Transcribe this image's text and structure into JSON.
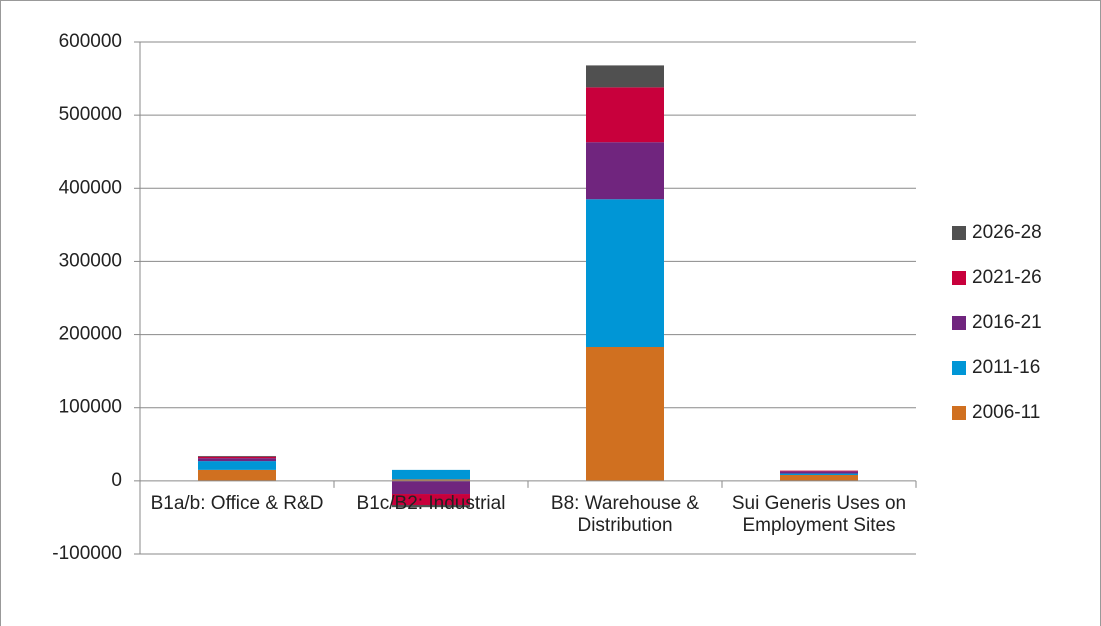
{
  "chart_data": {
    "type": "stacked-bar",
    "categories": [
      "B1a/b: Office & R&D",
      "B1c/B2: Industrial",
      "B8: Warehouse & Distribution",
      "Sui Generis Uses on Employment Sites"
    ],
    "series": [
      {
        "name": "2006-11",
        "color": "#d07020",
        "values": [
          15000,
          2000,
          183000,
          8000
        ]
      },
      {
        "name": "2011-16",
        "color": "#0096d6",
        "values": [
          12000,
          13000,
          202000,
          2000
        ]
      },
      {
        "name": "2016-21",
        "color": "#70257e",
        "values": [
          4000,
          -18000,
          78000,
          3000
        ]
      },
      {
        "name": "2021-26",
        "color": "#c8003c",
        "values": [
          2000,
          -15000,
          75000,
          1000
        ]
      },
      {
        "name": "2026-28",
        "color": "#505050",
        "values": [
          1000,
          -3000,
          30000,
          0
        ]
      }
    ],
    "ylim": [
      -100000,
      600000
    ],
    "yticks": [
      -100000,
      0,
      100000,
      200000,
      300000,
      400000,
      500000,
      600000
    ],
    "grid": true,
    "legend": "right"
  }
}
